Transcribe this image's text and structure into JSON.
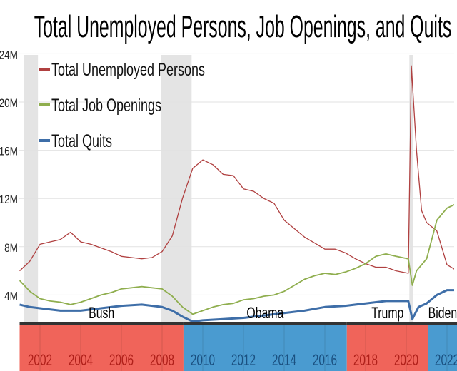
{
  "chart_data": {
    "type": "line",
    "title": "Total Unemployed Persons, Job Openings, and Quits",
    "xlabel": "",
    "ylabel": "",
    "ylim": [
      0,
      24
    ],
    "xlim": [
      2001,
      2022.6
    ],
    "y_ticks": [
      {
        "v": 4,
        "label": "4M"
      },
      {
        "v": 8,
        "label": "8M"
      },
      {
        "v": 12,
        "label": "12M"
      },
      {
        "v": 16,
        "label": "16M"
      },
      {
        "v": 20,
        "label": "20M"
      },
      {
        "v": 24,
        "label": "24M"
      }
    ],
    "x_ticks": [
      "2002",
      "2004",
      "2006",
      "2008",
      "2010",
      "2012",
      "2014",
      "2016",
      "2018",
      "2020",
      "2022"
    ],
    "grid": true,
    "legend_placement": "top-left",
    "recessions": [
      [
        2001.2,
        2001.9
      ],
      [
        2007.95,
        2009.45
      ],
      [
        2020.15,
        2020.35
      ]
    ],
    "presidents": [
      {
        "name": "Bush",
        "start": 2001.0,
        "end": 2009.05,
        "color": "#f0645a",
        "text_color": "#b0201a"
      },
      {
        "name": "Obama",
        "start": 2009.05,
        "end": 2017.08,
        "color": "#4a9bd0",
        "text_color": "#1a5080"
      },
      {
        "name": "Trump",
        "start": 2017.08,
        "end": 2021.08,
        "color": "#f0645a",
        "text_color": "#b0201a"
      },
      {
        "name": "Biden",
        "start": 2021.08,
        "end": 2023,
        "color": "#4a9bd0",
        "text_color": "#1a5080"
      }
    ],
    "series": [
      {
        "name": "Total Unemployed Persons",
        "color": "#b04040",
        "width": 1.3,
        "x": [
          2001.0,
          2001.5,
          2002.0,
          2002.5,
          2003.0,
          2003.5,
          2004.0,
          2004.5,
          2005.0,
          2005.5,
          2006.0,
          2006.5,
          2007.0,
          2007.5,
          2008.0,
          2008.5,
          2009.0,
          2009.5,
          2010.0,
          2010.5,
          2011.0,
          2011.5,
          2012.0,
          2012.5,
          2013.0,
          2013.5,
          2014.0,
          2014.5,
          2015.0,
          2015.5,
          2016.0,
          2016.5,
          2017.0,
          2017.5,
          2018.0,
          2018.5,
          2019.0,
          2019.5,
          2020.1,
          2020.25,
          2020.5,
          2020.75,
          2021.0,
          2021.5,
          2022.0,
          2022.5
        ],
        "values": [
          6.0,
          6.8,
          8.2,
          8.4,
          8.6,
          9.2,
          8.4,
          8.2,
          7.9,
          7.6,
          7.2,
          7.1,
          7.0,
          7.1,
          7.6,
          8.9,
          12.0,
          14.5,
          15.2,
          14.8,
          14.0,
          13.9,
          12.8,
          12.6,
          12.0,
          11.6,
          10.2,
          9.5,
          8.8,
          8.3,
          7.8,
          7.8,
          7.5,
          7.0,
          6.6,
          6.3,
          6.3,
          6.0,
          5.8,
          23.0,
          16.0,
          11.0,
          10.0,
          9.3,
          6.5,
          6.0
        ]
      },
      {
        "name": "Total Job Openings",
        "color": "#8fae4e",
        "width": 1.8,
        "x": [
          2001.0,
          2001.5,
          2002.0,
          2002.5,
          2003.0,
          2003.5,
          2004.0,
          2004.5,
          2005.0,
          2005.5,
          2006.0,
          2006.5,
          2007.0,
          2007.5,
          2008.0,
          2008.5,
          2009.0,
          2009.5,
          2010.0,
          2010.5,
          2011.0,
          2011.5,
          2012.0,
          2012.5,
          2013.0,
          2013.5,
          2014.0,
          2014.5,
          2015.0,
          2015.5,
          2016.0,
          2016.5,
          2017.0,
          2017.5,
          2018.0,
          2018.5,
          2019.0,
          2019.5,
          2020.1,
          2020.3,
          2020.5,
          2021.0,
          2021.5,
          2022.0,
          2022.5
        ],
        "values": [
          5.2,
          4.3,
          3.7,
          3.5,
          3.4,
          3.2,
          3.4,
          3.7,
          4.0,
          4.2,
          4.5,
          4.6,
          4.7,
          4.6,
          4.5,
          3.9,
          3.0,
          2.4,
          2.7,
          3.0,
          3.2,
          3.3,
          3.6,
          3.7,
          3.9,
          4.0,
          4.3,
          4.8,
          5.3,
          5.6,
          5.8,
          5.7,
          5.9,
          6.2,
          6.6,
          7.2,
          7.4,
          7.2,
          7.0,
          4.8,
          6.0,
          7.0,
          10.2,
          11.2,
          11.6
        ]
      },
      {
        "name": "Total Quits",
        "color": "#3e6ea8",
        "width": 3,
        "x": [
          2001.0,
          2001.5,
          2002.0,
          2003.0,
          2004.0,
          2005.0,
          2006.0,
          2007.0,
          2008.0,
          2008.5,
          2009.0,
          2009.5,
          2010.0,
          2011.0,
          2012.0,
          2013.0,
          2014.0,
          2015.0,
          2016.0,
          2017.0,
          2018.0,
          2019.0,
          2020.1,
          2020.3,
          2020.6,
          2021.0,
          2021.5,
          2022.0,
          2022.5
        ],
        "values": [
          3.2,
          3.0,
          2.9,
          2.7,
          2.7,
          2.9,
          3.1,
          3.2,
          3.0,
          2.7,
          2.2,
          1.8,
          1.9,
          2.0,
          2.1,
          2.3,
          2.5,
          2.7,
          3.0,
          3.1,
          3.3,
          3.5,
          3.5,
          2.0,
          3.0,
          3.3,
          4.0,
          4.4,
          4.4
        ]
      }
    ]
  }
}
